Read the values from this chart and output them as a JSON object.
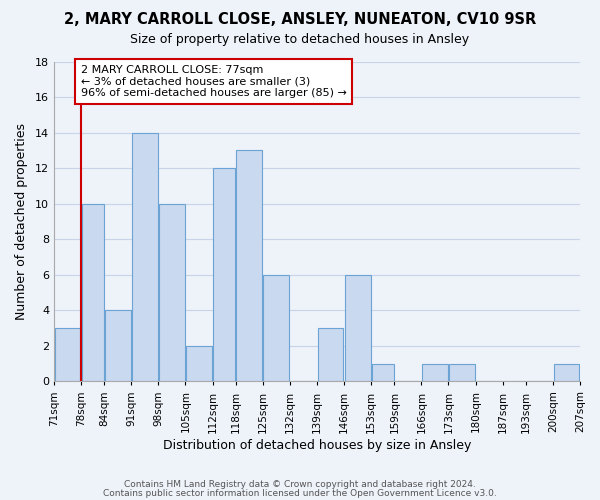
{
  "title": "2, MARY CARROLL CLOSE, ANSLEY, NUNEATON, CV10 9SR",
  "subtitle": "Size of property relative to detached houses in Ansley",
  "xlabel": "Distribution of detached houses by size in Ansley",
  "ylabel": "Number of detached properties",
  "bar_edges": [
    71,
    78,
    84,
    91,
    98,
    105,
    112,
    118,
    125,
    132,
    139,
    146,
    153,
    159,
    166,
    173,
    180,
    187,
    193,
    200,
    207
  ],
  "bar_heights": [
    3,
    10,
    4,
    14,
    10,
    2,
    12,
    13,
    6,
    0,
    3,
    6,
    1,
    0,
    1,
    1,
    0,
    0,
    0,
    1
  ],
  "bar_color": "#c9d9f0",
  "bar_edge_color": "#6aa3d4",
  "highlight_line_color": "#cc0000",
  "ylim": [
    0,
    18
  ],
  "yticks": [
    0,
    2,
    4,
    6,
    8,
    10,
    12,
    14,
    16,
    18
  ],
  "annotation_text": "2 MARY CARROLL CLOSE: 77sqm\n← 3% of detached houses are smaller (3)\n96% of semi-detached houses are larger (85) →",
  "annotation_box_color": "#ffffff",
  "annotation_box_edge_color": "#cc0000",
  "footer_line1": "Contains HM Land Registry data © Crown copyright and database right 2024.",
  "footer_line2": "Contains public sector information licensed under the Open Government Licence v3.0.",
  "tick_labels": [
    "71sqm",
    "78sqm",
    "84sqm",
    "91sqm",
    "98sqm",
    "105sqm",
    "112sqm",
    "118sqm",
    "125sqm",
    "132sqm",
    "139sqm",
    "146sqm",
    "153sqm",
    "159sqm",
    "166sqm",
    "173sqm",
    "180sqm",
    "187sqm",
    "193sqm",
    "200sqm",
    "207sqm"
  ],
  "grid_color": "#c8d4e8",
  "background_color": "#eef2f9"
}
